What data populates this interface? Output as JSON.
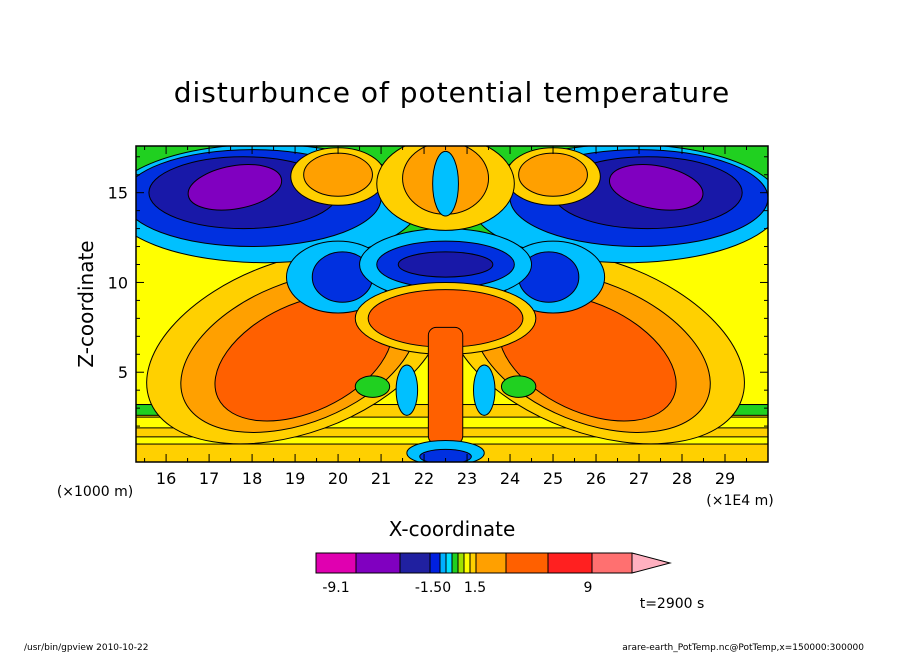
{
  "chart_data": {
    "type": "heatmap",
    "title": "disturbunce of potential temperature",
    "xlabel": "X-coordinate",
    "ylabel": "Z-coordinate",
    "x_scale_note": "(×1E4 m)",
    "y_scale_note": "(×1000 m)",
    "xlim": [
      15.3,
      30.0
    ],
    "ylim": [
      0.0,
      17.6
    ],
    "x_ticks": [
      16,
      17,
      18,
      19,
      20,
      21,
      22,
      23,
      24,
      25,
      26,
      27,
      28,
      29
    ],
    "y_ticks": [
      5,
      10,
      15
    ],
    "colorbar": {
      "labels": [
        "-9.1",
        "-1.50",
        "1.5",
        "9"
      ],
      "colors": [
        "#e000b0",
        "#8000c0",
        "#2020a0",
        "#0020e0",
        "#00b0ff",
        "#00e0ff",
        "#20d020",
        "#a0e000",
        "#ffff00",
        "#ffd000",
        "#ffa000",
        "#ff6000",
        "#ff2020",
        "#ff7070",
        "#ffb0c0"
      ]
    },
    "features": [
      {
        "name": "upper-left cold lobe",
        "cx": 17.5,
        "cz": 15.3,
        "value": -7.0
      },
      {
        "name": "upper-right cold lobe",
        "cx": 27.5,
        "cz": 15.3,
        "value": -7.0
      },
      {
        "name": "upper-left warm cell",
        "cx": 20.0,
        "cz": 15.8,
        "value": 4.0
      },
      {
        "name": "upper-right warm cell",
        "cx": 25.0,
        "cz": 15.8,
        "value": 4.0
      },
      {
        "name": "central cold band",
        "cx": 22.5,
        "cz": 11.0,
        "value": -3.0
      },
      {
        "name": "central warm plume",
        "cx": 22.5,
        "cz": 7.5,
        "value": 5.0
      },
      {
        "name": "lower-left warm region",
        "cx": 19.0,
        "cz": 6.0,
        "value": 4.0
      },
      {
        "name": "lower-right warm region",
        "cx": 26.0,
        "cz": 6.0,
        "value": 4.0
      }
    ]
  },
  "annotations": {
    "time": "t=2900 s",
    "footer_left": "/usr/bin/gpview  2010-10-22",
    "footer_right": "arare-earth_PotTemp.nc@PotTemp,x=150000:300000"
  },
  "colors": {
    "background": "#ffffff",
    "axis": "#000000"
  }
}
